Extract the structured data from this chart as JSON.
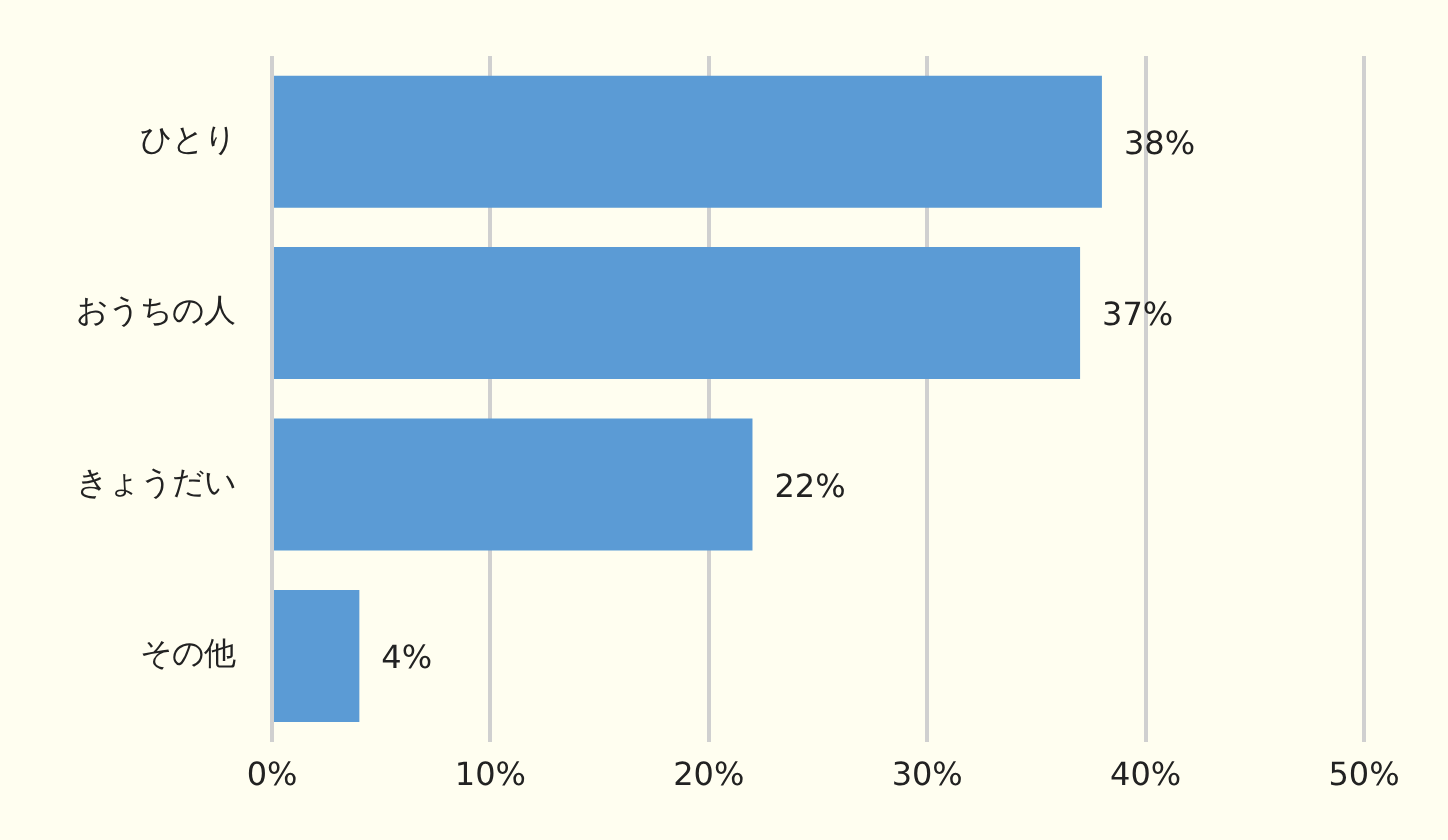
{
  "chart_data": {
    "type": "bar",
    "orientation": "horizontal",
    "categories": [
      "ひとり",
      "おうちの人",
      "きょうだい",
      "その他"
    ],
    "values": [
      38,
      37,
      22,
      4
    ],
    "value_labels": [
      "38%",
      "37%",
      "22%",
      "4%"
    ],
    "color": "#5b9bd5",
    "xlim": [
      0,
      50
    ],
    "xticks": [
      {
        "value": 0,
        "label": "0%"
      },
      {
        "value": 10,
        "label": "10%"
      },
      {
        "value": 20,
        "label": "20%"
      },
      {
        "value": 30,
        "label": "30%"
      },
      {
        "value": 40,
        "label": "40%"
      },
      {
        "value": 50,
        "label": "50%"
      }
    ],
    "grid": "x",
    "legend": false
  }
}
